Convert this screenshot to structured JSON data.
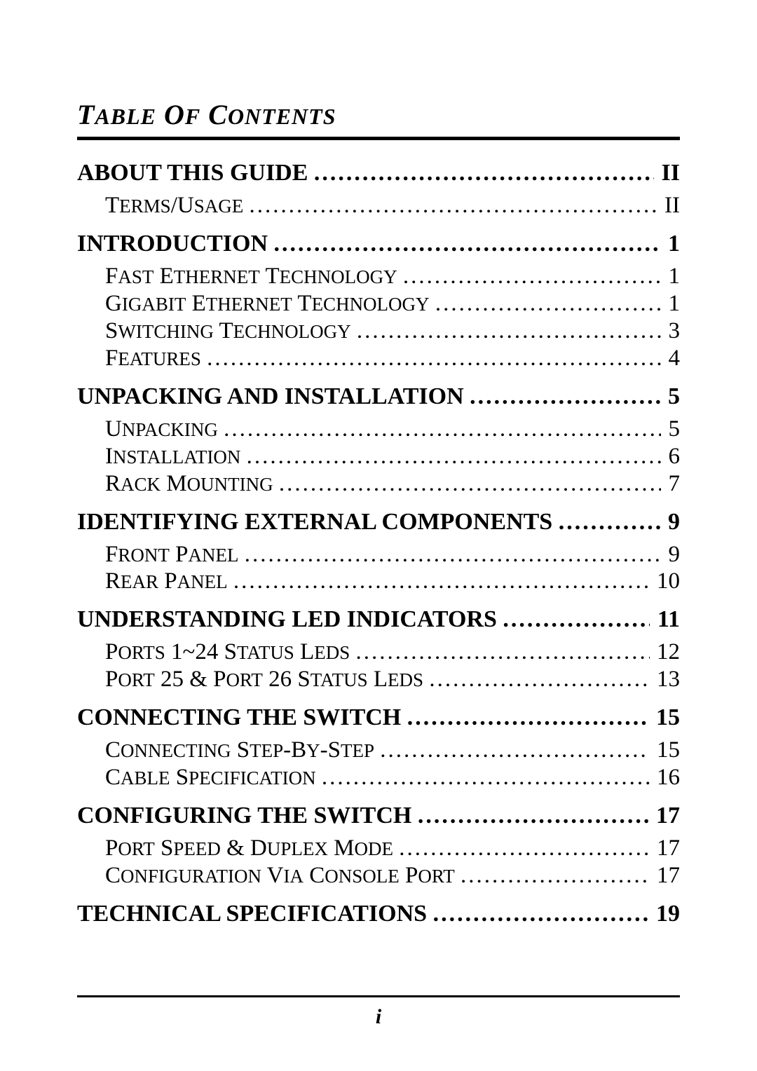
{
  "title": "TABLE OF CONTENTS",
  "footer_page": "i",
  "entries": [
    {
      "level": 1,
      "label": "ABOUT THIS GUIDE",
      "page": "II"
    },
    {
      "level": 2,
      "label": "TERMS/USAGE",
      "page": "II"
    },
    {
      "level": 1,
      "label": "INTRODUCTION",
      "page": "1"
    },
    {
      "level": 2,
      "label": "FAST ETHERNET TECHNOLOGY",
      "page": "1"
    },
    {
      "level": 2,
      "label": "GIGABIT ETHERNET TECHNOLOGY",
      "page": "1"
    },
    {
      "level": 2,
      "label": "SWITCHING TECHNOLOGY",
      "page": "3"
    },
    {
      "level": 2,
      "label": "FEATURES",
      "page": "4"
    },
    {
      "level": 1,
      "label": "UNPACKING AND INSTALLATION",
      "page": "5"
    },
    {
      "level": 2,
      "label": "UNPACKING",
      "page": "5"
    },
    {
      "level": 2,
      "label": "INSTALLATION",
      "page": "6"
    },
    {
      "level": 2,
      "label": "RACK MOUNTING",
      "page": "7"
    },
    {
      "level": 1,
      "label": "IDENTIFYING EXTERNAL COMPONENTS",
      "page": "9"
    },
    {
      "level": 2,
      "label": "FRONT PANEL",
      "page": "9"
    },
    {
      "level": 2,
      "label": "REAR PANEL",
      "page": "10"
    },
    {
      "level": 1,
      "label": "UNDERSTANDING LED INDICATORS",
      "page": "11"
    },
    {
      "level": 2,
      "label": "PORTS 1~24 STATUS LEDS",
      "page": "12"
    },
    {
      "level": 2,
      "label": "PORT 25 & PORT 26 STATUS LEDS",
      "page": "13"
    },
    {
      "level": 1,
      "label": "CONNECTING THE SWITCH",
      "page": "15"
    },
    {
      "level": 2,
      "label": "CONNECTING STEP-BY-STEP",
      "page": "15"
    },
    {
      "level": 2,
      "label": "CABLE SPECIFICATION",
      "page": "16"
    },
    {
      "level": 1,
      "label": "CONFIGURING THE SWITCH",
      "page": "17"
    },
    {
      "level": 2,
      "label": "PORT SPEED & DUPLEX MODE",
      "page": "17"
    },
    {
      "level": 2,
      "label": "CONFIGURATION VIA CONSOLE PORT",
      "page": "17"
    },
    {
      "level": 1,
      "label": "TECHNICAL SPECIFICATIONS",
      "page": "19"
    }
  ]
}
